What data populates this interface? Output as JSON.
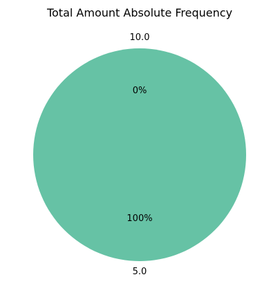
{
  "chart_data": {
    "type": "pie",
    "title": "Total Amount Absolute Frequency",
    "categories": [
      "5.0",
      "10.0"
    ],
    "values": [
      100,
      0
    ],
    "percent_labels": [
      "100%",
      "0%"
    ],
    "colors": [
      "#66c2a5",
      "#fc8d62"
    ],
    "legend": "none"
  }
}
